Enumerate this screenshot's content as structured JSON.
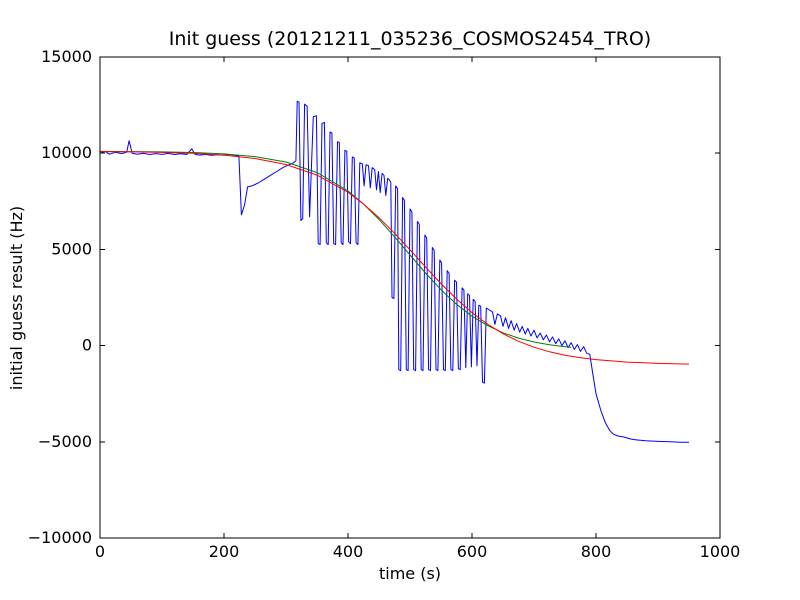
{
  "figure": {
    "background": "#ffffff",
    "frame_color": "#000000"
  },
  "chart_data": {
    "type": "line",
    "title": "Init guess (20121211_035236_COSMOS2454_TRO)",
    "xlabel": "time (s)",
    "ylabel": "initial guess result (Hz)",
    "xlim": [
      0,
      1000
    ],
    "ylim": [
      -10000,
      15000
    ],
    "grid": false,
    "legend": "none",
    "xticks": {
      "values": [
        0,
        200,
        400,
        600,
        800,
        1000
      ],
      "labels": [
        "0",
        "200",
        "400",
        "600",
        "800",
        "1000"
      ]
    },
    "yticks": {
      "values": [
        -10000,
        -5000,
        0,
        5000,
        10000,
        15000
      ],
      "labels": [
        "−10000",
        "−5000",
        "0",
        "5000",
        "10000",
        "15000"
      ]
    },
    "series": [
      {
        "name": "blue_data",
        "color": "#0000ff",
        "points": [
          [
            0,
            10000
          ],
          [
            8,
            10100
          ],
          [
            15,
            9950
          ],
          [
            25,
            10050
          ],
          [
            35,
            9980
          ],
          [
            43,
            10050
          ],
          [
            47,
            10650
          ],
          [
            52,
            10000
          ],
          [
            60,
            9950
          ],
          [
            70,
            10000
          ],
          [
            80,
            9930
          ],
          [
            90,
            9980
          ],
          [
            100,
            9940
          ],
          [
            110,
            9990
          ],
          [
            120,
            9930
          ],
          [
            130,
            9970
          ],
          [
            140,
            9930
          ],
          [
            148,
            10230
          ],
          [
            153,
            9950
          ],
          [
            160,
            9900
          ],
          [
            170,
            9930
          ],
          [
            180,
            9890
          ],
          [
            190,
            9920
          ],
          [
            200,
            9890
          ],
          [
            210,
            9930
          ],
          [
            220,
            9880
          ],
          [
            224,
            9850
          ],
          [
            228,
            6800
          ],
          [
            233,
            7300
          ],
          [
            238,
            8250
          ],
          [
            245,
            8300
          ],
          [
            255,
            8450
          ],
          [
            265,
            8650
          ],
          [
            275,
            8850
          ],
          [
            285,
            9050
          ],
          [
            295,
            9250
          ],
          [
            305,
            9400
          ],
          [
            312,
            9500
          ],
          [
            316,
            9600
          ],
          [
            318,
            12700
          ],
          [
            321,
            12650
          ],
          [
            324,
            6500
          ],
          [
            327,
            6600
          ],
          [
            330,
            12550
          ],
          [
            334,
            12450
          ],
          [
            338,
            6700
          ],
          [
            344,
            11900
          ],
          [
            349,
            11950
          ],
          [
            352,
            5300
          ],
          [
            355,
            5250
          ],
          [
            358,
            11550
          ],
          [
            362,
            11600
          ],
          [
            365,
            5350
          ],
          [
            368,
            5250
          ],
          [
            371,
            11100
          ],
          [
            374,
            11050
          ],
          [
            377,
            5300
          ],
          [
            380,
            5250
          ],
          [
            383,
            10600
          ],
          [
            386,
            10550
          ],
          [
            389,
            5350
          ],
          [
            392,
            5250
          ],
          [
            395,
            10150
          ],
          [
            398,
            10100
          ],
          [
            401,
            5400
          ],
          [
            404,
            5300
          ],
          [
            407,
            9800
          ],
          [
            410,
            9750
          ],
          [
            413,
            5350
          ],
          [
            416,
            5250
          ],
          [
            419,
            9500
          ],
          [
            423,
            9450
          ],
          [
            426,
            8300
          ],
          [
            429,
            9400
          ],
          [
            433,
            9350
          ],
          [
            436,
            8200
          ],
          [
            439,
            9250
          ],
          [
            443,
            9150
          ],
          [
            446,
            8100
          ],
          [
            449,
            9050
          ],
          [
            452,
            7950
          ],
          [
            455,
            8950
          ],
          [
            458,
            8850
          ],
          [
            461,
            7800
          ],
          [
            464,
            8700
          ],
          [
            467,
            8600
          ],
          [
            469,
            8500
          ],
          [
            471,
            2500
          ],
          [
            474,
            2450
          ],
          [
            477,
            8300
          ],
          [
            480,
            8150
          ],
          [
            482,
            -1250
          ],
          [
            485,
            -1300
          ],
          [
            488,
            7700
          ],
          [
            491,
            7550
          ],
          [
            494,
            -1250
          ],
          [
            497,
            -1300
          ],
          [
            500,
            7100
          ],
          [
            503,
            6950
          ],
          [
            506,
            -1250
          ],
          [
            509,
            -1300
          ],
          [
            512,
            6450
          ],
          [
            515,
            6300
          ],
          [
            518,
            -1250
          ],
          [
            521,
            -1300
          ],
          [
            524,
            5750
          ],
          [
            527,
            5600
          ],
          [
            530,
            -1250
          ],
          [
            533,
            -1300
          ],
          [
            536,
            5100
          ],
          [
            539,
            4950
          ],
          [
            542,
            -1250
          ],
          [
            545,
            -1300
          ],
          [
            548,
            4450
          ],
          [
            551,
            4300
          ],
          [
            554,
            -1250
          ],
          [
            557,
            -1300
          ],
          [
            560,
            3900
          ],
          [
            563,
            3750
          ],
          [
            566,
            -1250
          ],
          [
            569,
            -1300
          ],
          [
            572,
            3400
          ],
          [
            575,
            3300
          ],
          [
            578,
            -1200
          ],
          [
            581,
            -1250
          ],
          [
            584,
            3000
          ],
          [
            587,
            2900
          ],
          [
            590,
            -1150
          ],
          [
            593,
            2700
          ],
          [
            596,
            2600
          ],
          [
            599,
            -1100
          ],
          [
            602,
            2400
          ],
          [
            605,
            2300
          ],
          [
            608,
            -1050
          ],
          [
            611,
            2100
          ],
          [
            614,
            2050
          ],
          [
            617,
            -1900
          ],
          [
            620,
            -1950
          ],
          [
            623,
            1950
          ],
          [
            628,
            1850
          ],
          [
            633,
            1750
          ],
          [
            637,
            1100
          ],
          [
            641,
            1650
          ],
          [
            646,
            1550
          ],
          [
            650,
            1000
          ],
          [
            654,
            1450
          ],
          [
            659,
            900
          ],
          [
            663,
            1300
          ],
          [
            668,
            800
          ],
          [
            672,
            1150
          ],
          [
            677,
            700
          ],
          [
            681,
            1000
          ],
          [
            686,
            600
          ],
          [
            690,
            900
          ],
          [
            695,
            500
          ],
          [
            700,
            800
          ],
          [
            705,
            400
          ],
          [
            710,
            650
          ],
          [
            715,
            300
          ],
          [
            720,
            550
          ],
          [
            725,
            200
          ],
          [
            730,
            450
          ],
          [
            735,
            100
          ],
          [
            740,
            350
          ],
          [
            745,
            0
          ],
          [
            750,
            250
          ],
          [
            755,
            -100
          ],
          [
            760,
            150
          ],
          [
            765,
            -200
          ],
          [
            770,
            50
          ],
          [
            775,
            -300
          ],
          [
            780,
            -50
          ],
          [
            785,
            -400
          ],
          [
            790,
            -450
          ],
          [
            795,
            -1500
          ],
          [
            800,
            -2500
          ],
          [
            808,
            -3400
          ],
          [
            815,
            -4000
          ],
          [
            822,
            -4400
          ],
          [
            828,
            -4600
          ],
          [
            835,
            -4700
          ],
          [
            845,
            -4750
          ],
          [
            855,
            -4850
          ],
          [
            865,
            -4900
          ],
          [
            880,
            -4950
          ],
          [
            900,
            -4980
          ],
          [
            920,
            -5000
          ],
          [
            935,
            -5020
          ],
          [
            950,
            -5020
          ]
        ]
      },
      {
        "name": "green_fit",
        "color": "#008000",
        "points": [
          [
            0,
            10093
          ],
          [
            50,
            10085
          ],
          [
            100,
            10069
          ],
          [
            150,
            10036
          ],
          [
            200,
            9966
          ],
          [
            250,
            9824
          ],
          [
            300,
            9541
          ],
          [
            350,
            8997
          ],
          [
            400,
            8038
          ],
          [
            425,
            7362
          ],
          [
            450,
            6561
          ],
          [
            475,
            5659
          ],
          [
            500,
            4709
          ],
          [
            525,
            3772
          ],
          [
            550,
            2904
          ],
          [
            575,
            2152
          ],
          [
            600,
            1530
          ],
          [
            625,
            1039
          ],
          [
            650,
            666
          ],
          [
            675,
            388
          ],
          [
            700,
            186
          ],
          [
            725,
            42
          ],
          [
            750,
            -61
          ],
          [
            760,
            -93
          ]
        ]
      },
      {
        "name": "red_fit",
        "color": "#ff0000",
        "points": [
          [
            0,
            10084
          ],
          [
            50,
            10070
          ],
          [
            100,
            10044
          ],
          [
            150,
            9994
          ],
          [
            200,
            9901
          ],
          [
            250,
            9727
          ],
          [
            300,
            9413
          ],
          [
            350,
            8864
          ],
          [
            400,
            7967
          ],
          [
            425,
            7359
          ],
          [
            450,
            6647
          ],
          [
            475,
            5842
          ],
          [
            500,
            4977
          ],
          [
            525,
            4088
          ],
          [
            550,
            3225
          ],
          [
            575,
            2422
          ],
          [
            600,
            1714
          ],
          [
            625,
            1111
          ],
          [
            650,
            617
          ],
          [
            675,
            222
          ],
          [
            700,
            -85
          ],
          [
            725,
            -321
          ],
          [
            750,
            -499
          ],
          [
            775,
            -632
          ],
          [
            800,
            -730
          ],
          [
            850,
            -856
          ],
          [
            900,
            -924
          ],
          [
            950,
            -960
          ]
        ]
      }
    ]
  }
}
